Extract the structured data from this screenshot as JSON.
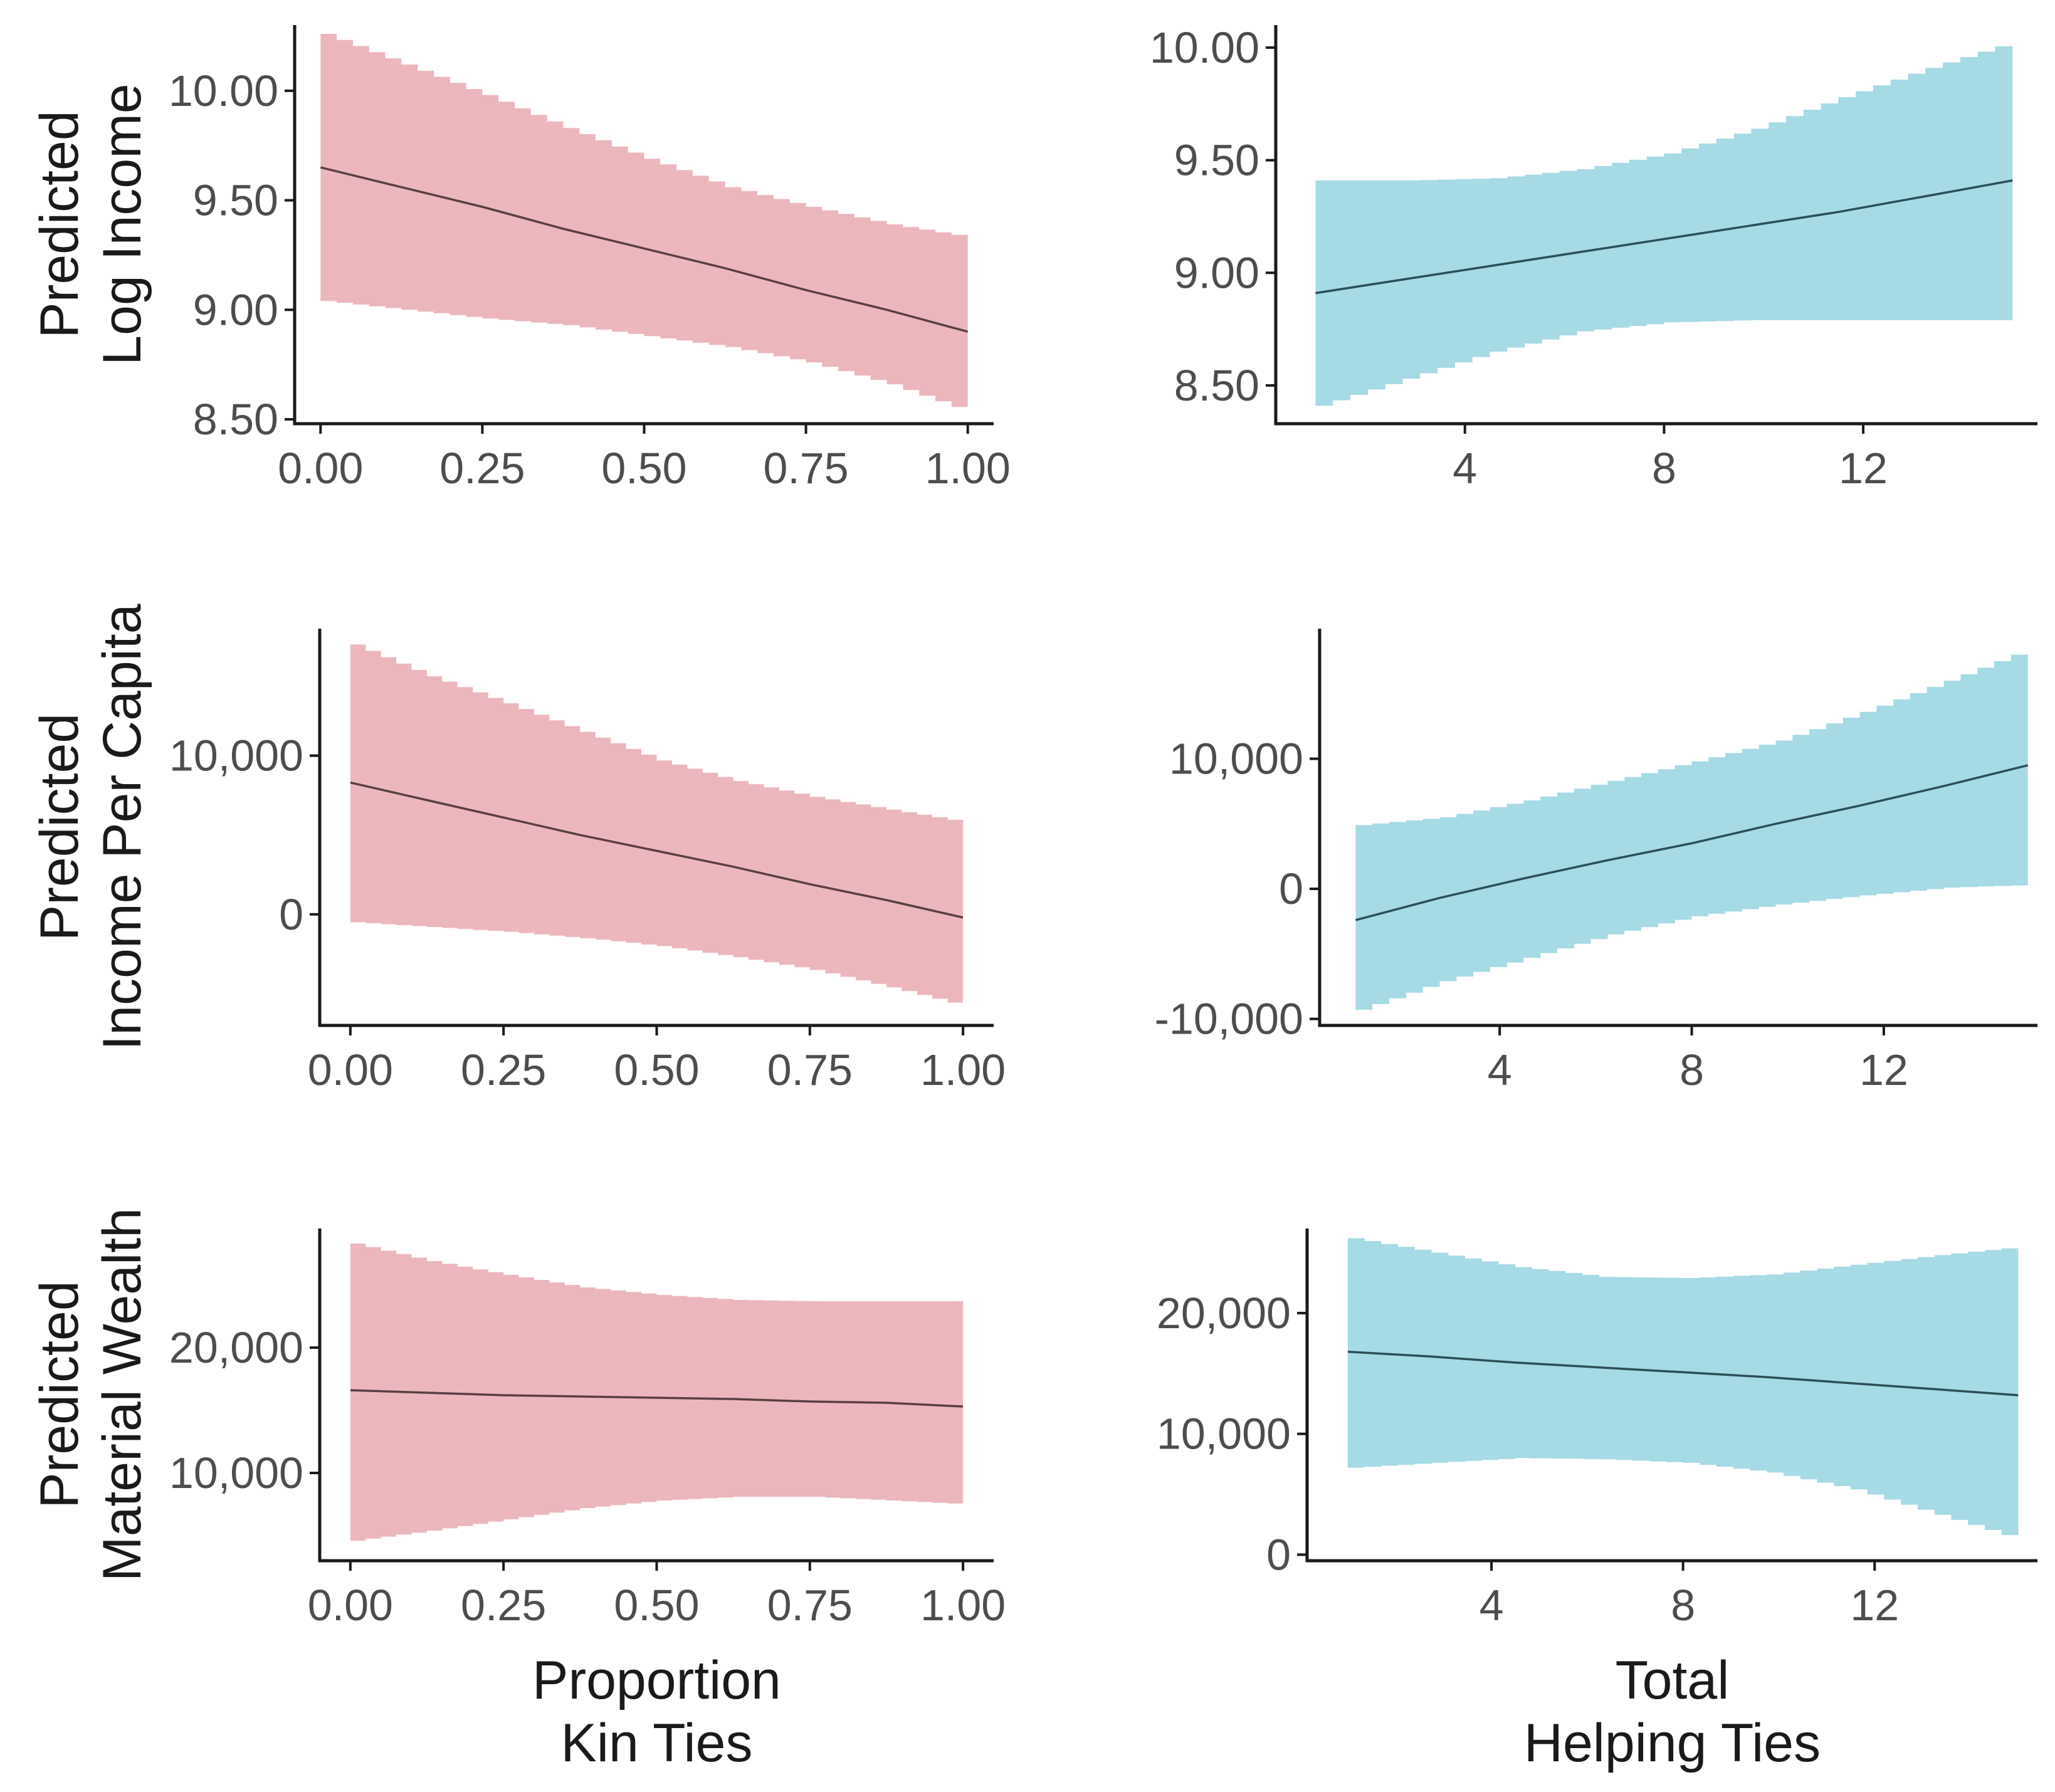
{
  "colors": {
    "kin_band": "#ebb7bd",
    "kin_line": "#5a3f43",
    "help_band": "#a6dae5",
    "help_line": "#2c4f57"
  },
  "chart_data": [
    {
      "id": "log-income-kin",
      "type": "area",
      "ylabel": [
        "Predicted",
        "Log Income"
      ],
      "xlabel": [],
      "xlim": [
        -0.04,
        1.04
      ],
      "ylim": [
        8.48,
        10.3
      ],
      "xticks": [
        0,
        0.25,
        0.5,
        0.75,
        1
      ],
      "xtick_labels": [
        "0.00",
        "0.25",
        "0.50",
        "0.75",
        "1.00"
      ],
      "yticks": [
        8.5,
        9.0,
        9.5,
        10.0
      ],
      "ytick_labels": [
        "8.50",
        "9.00",
        "9.50",
        "10.00"
      ],
      "x": [
        0,
        0.125,
        0.25,
        0.375,
        0.5,
        0.625,
        0.75,
        0.875,
        1
      ],
      "fit": [
        9.65,
        9.56,
        9.47,
        9.37,
        9.28,
        9.19,
        9.09,
        9.0,
        8.9
      ],
      "lower": [
        9.04,
        9.0,
        8.96,
        8.93,
        8.88,
        8.83,
        8.76,
        8.66,
        8.53
      ],
      "upper": [
        10.26,
        10.12,
        9.98,
        9.83,
        9.69,
        9.56,
        9.47,
        9.39,
        9.33
      ],
      "band_color": "#ebb7bd",
      "line_color": "#5a3f43"
    },
    {
      "id": "log-income-help",
      "type": "area",
      "ylabel": [],
      "xlabel": [],
      "xlim": [
        0.2,
        15.5
      ],
      "ylim": [
        8.33,
        10.1
      ],
      "xticks": [
        4,
        8,
        12
      ],
      "xtick_labels": [
        "4",
        "8",
        "12"
      ],
      "yticks": [
        8.5,
        9.0,
        9.5,
        10.0
      ],
      "ytick_labels": [
        "8.50",
        "9.00",
        "9.50",
        "10.00"
      ],
      "x": [
        1,
        2.75,
        4.5,
        6.25,
        8,
        9.75,
        11.5,
        13.25,
        15
      ],
      "fit": [
        8.91,
        8.97,
        9.03,
        9.09,
        9.15,
        9.21,
        9.27,
        9.34,
        9.41
      ],
      "lower": [
        8.41,
        8.53,
        8.65,
        8.74,
        8.78,
        8.79,
        8.79,
        8.79,
        8.79
      ],
      "upper": [
        9.41,
        9.41,
        9.42,
        9.46,
        9.53,
        9.64,
        9.78,
        9.91,
        10.03
      ],
      "band_color": "#a6dae5",
      "line_color": "#2c4f57"
    },
    {
      "id": "income-per-capita-kin",
      "type": "area",
      "ylabel": [
        "Predicted",
        "Income Per Capita"
      ],
      "xlabel": [],
      "xlim": [
        -0.05,
        1.05
      ],
      "ylim": [
        -7000,
        18000
      ],
      "xticks": [
        0,
        0.25,
        0.5,
        0.75,
        1
      ],
      "xtick_labels": [
        "0.00",
        "0.25",
        "0.50",
        "0.75",
        "1.00"
      ],
      "yticks": [
        0,
        10000
      ],
      "ytick_labels": [
        "0",
        "10,000"
      ],
      "x": [
        0,
        0.125,
        0.25,
        0.375,
        0.5,
        0.625,
        0.75,
        0.875,
        1
      ],
      "fit": [
        8300,
        7200,
        6100,
        5000,
        4000,
        3000,
        1900,
        900,
        -200
      ],
      "lower": [
        -500,
        -800,
        -1100,
        -1500,
        -2000,
        -2700,
        -3500,
        -4600,
        -5800
      ],
      "upper": [
        17000,
        15000,
        13300,
        11500,
        9700,
        8400,
        7400,
        6600,
        5800
      ],
      "band_color": "#ebb7bd",
      "line_color": "#5a3f43"
    },
    {
      "id": "income-per-capita-help",
      "type": "area",
      "ylabel": [],
      "xlabel": [],
      "xlim": [
        0.25,
        15.2
      ],
      "ylim": [
        -10500,
        20000
      ],
      "xticks": [
        4,
        8,
        12
      ],
      "xtick_labels": [
        "4",
        "8",
        "12"
      ],
      "yticks": [
        -10000,
        0,
        10000
      ],
      "ytick_labels": [
        "-10,000",
        "0",
        "10,000"
      ],
      "x": [
        1,
        2.75,
        4.5,
        6.25,
        8,
        9.75,
        11.5,
        13.25,
        15
      ],
      "fit": [
        -2400,
        -700,
        800,
        2200,
        3500,
        5000,
        6400,
        7900,
        9500
      ],
      "lower": [
        -9300,
        -7100,
        -5300,
        -3500,
        -2100,
        -1200,
        -500,
        100,
        300
      ],
      "upper": [
        4900,
        5500,
        6800,
        8300,
        9800,
        11400,
        13600,
        16000,
        18500
      ],
      "band_color": "#a6dae5",
      "line_color": "#2c4f57"
    },
    {
      "id": "material-wealth-kin",
      "type": "area",
      "ylabel": [
        "Predicted",
        "Material Wealth"
      ],
      "xlabel": [
        "Proportion",
        "Kin Ties"
      ],
      "xlim": [
        -0.05,
        1.05
      ],
      "ylim": [
        3000,
        29500
      ],
      "xticks": [
        0,
        0.25,
        0.5,
        0.75,
        1
      ],
      "xtick_labels": [
        "0.00",
        "0.25",
        "0.50",
        "0.75",
        "1.00"
      ],
      "yticks": [
        10000,
        20000
      ],
      "ytick_labels": [
        "10,000",
        "20,000"
      ],
      "x": [
        0,
        0.125,
        0.25,
        0.375,
        0.5,
        0.625,
        0.75,
        0.875,
        1
      ],
      "fit": [
        16600,
        16400,
        16200,
        16100,
        16000,
        15900,
        15700,
        15600,
        15300
      ],
      "lower": [
        4600,
        5400,
        6300,
        7200,
        7800,
        8100,
        8100,
        7800,
        7500
      ],
      "upper": [
        28300,
        26900,
        25800,
        24800,
        24200,
        23800,
        23700,
        23700,
        23700
      ],
      "band_color": "#ebb7bd",
      "line_color": "#5a3f43"
    },
    {
      "id": "material-wealth-help",
      "type": "area",
      "ylabel": [],
      "xlabel": [
        "Total",
        "Helping Ties"
      ],
      "xlim": [
        0.15,
        15.4
      ],
      "ylim": [
        -500,
        27000
      ],
      "xticks": [
        4,
        8,
        12
      ],
      "xtick_labels": [
        "4",
        "8",
        "12"
      ],
      "yticks": [
        0,
        10000,
        20000
      ],
      "ytick_labels": [
        "0",
        "10,000",
        "20,000"
      ],
      "x": [
        1,
        2.75,
        4.5,
        6.25,
        8,
        9.75,
        11.5,
        13.25,
        15
      ],
      "fit": [
        16800,
        16400,
        15900,
        15500,
        15100,
        14700,
        14200,
        13700,
        13200
      ],
      "lower": [
        7200,
        7600,
        8000,
        7900,
        7600,
        6800,
        5400,
        3300,
        1200
      ],
      "upper": [
        26200,
        25000,
        23800,
        23000,
        22900,
        23200,
        24000,
        24800,
        25500
      ],
      "band_color": "#a6dae5",
      "line_color": "#2c4f57"
    }
  ]
}
